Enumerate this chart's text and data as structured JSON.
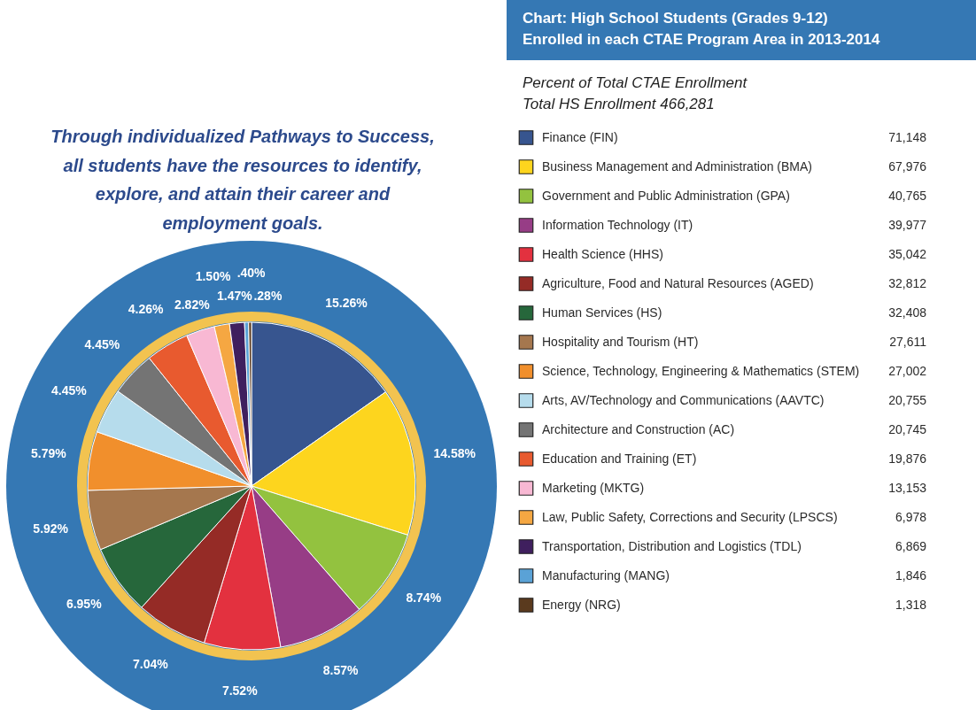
{
  "chart_data": {
    "type": "pie",
    "title": "Chart:  High School Students (Grades 9-12) Enrolled in each CTAE Program Area in 2013-2014",
    "subtitle": "Percent of Total CTAE Enrollment",
    "legend_title": "Total HS Enrollment 466,281",
    "annotations": [
      "Through individualized Pathways to Success, all students have the resources to identify, explore, and attain their career and employment goals.",
      {
        "text": "71,148",
        "x": "Finance (FIN)"
      },
      {
        "text": "67,976",
        "x": "Business Management and Administration (BMA)"
      },
      {
        "text": "40,765",
        "x": "Government and Public Administration (GPA)"
      },
      {
        "text": "39,977",
        "x": "Information Technology (IT)"
      },
      {
        "text": "35,042",
        "x": "Health Science (HHS)"
      },
      {
        "text": "32,812",
        "x": "Agriculture, Food and Natural Resources (AGED)"
      },
      {
        "text": "32,408",
        "x": "Human Services (HS)"
      },
      {
        "text": "27,611",
        "x": "Hospitality and Tourism (HT)"
      },
      {
        "text": "27,002",
        "x": "Science, Technology, Engineering & Mathematics (STEM)"
      },
      {
        "text": "20,755",
        "x": "Arts, AV/Technology and Communications (AAVTC)"
      },
      {
        "text": "20,745",
        "x": "Architecture and Construction (AC)"
      },
      {
        "text": "19,876",
        "x": "Education and Training (ET)"
      },
      {
        "text": "13,153",
        "x": "Marketing (MKTG)"
      },
      {
        "text": "6,978",
        "x": "Law, Public Safety, Corrections and Security (LPSCS)"
      },
      {
        "text": "6,869",
        "x": "Transportation, Distribution and Logistics (TDL)"
      },
      {
        "text": "1,846",
        "x": "Manufacturing (MANG)"
      },
      {
        "text": "1,318",
        "x": "Energy (NRG)"
      }
    ],
    "categories": [
      "Finance (FIN)",
      "Business Management and Administration (BMA)",
      "Government and Public Administration (GPA)",
      "Information Technology (IT)",
      "Health Science (HHS)",
      "Agriculture, Food and Natural Resources (AGED)",
      "Human Services (HS)",
      "Hospitality and Tourism (HT)",
      "Science, Technology, Engineering & Mathematics (STEM)",
      "Arts, AV/Technology and Communications (AAVTC)",
      "Architecture and Construction (AC)",
      "Education and Training (ET)",
      "Marketing (MKTG)",
      "Law, Public Safety, Corrections and Security (LPSCS)",
      "Transportation, Distribution and Logistics (TDL)",
      "Manufacturing (MANG)",
      "Energy (NRG)"
    ],
    "values": [
      15.26,
      14.58,
      8.74,
      8.57,
      7.52,
      7.04,
      6.95,
      5.92,
      5.79,
      4.45,
      4.45,
      4.26,
      2.82,
      1.5,
      1.47,
      0.4,
      0.28
    ],
    "value_labels": [
      "15.26%",
      "14.58%",
      "8.74%",
      "8.57%",
      "7.52%",
      "7.04%",
      "6.95%",
      "5.92%",
      "5.79%",
      "4.45%",
      "4.45%",
      "4.26%",
      "2.82%",
      "1.50%",
      "1.47%",
      ".40%",
      ".28%"
    ],
    "colors": [
      "#37558f",
      "#fdd51e",
      "#93c23f",
      "#973d86",
      "#e3313f",
      "#952b26",
      "#26673b",
      "#a5774e",
      "#f18f2c",
      "#b6dcec",
      "#747474",
      "#e85a2f",
      "#f8b8d3",
      "#f5a742",
      "#3f1f5e",
      "#5aa2d6",
      "#5a3a1e"
    ],
    "legend": "right"
  }
}
